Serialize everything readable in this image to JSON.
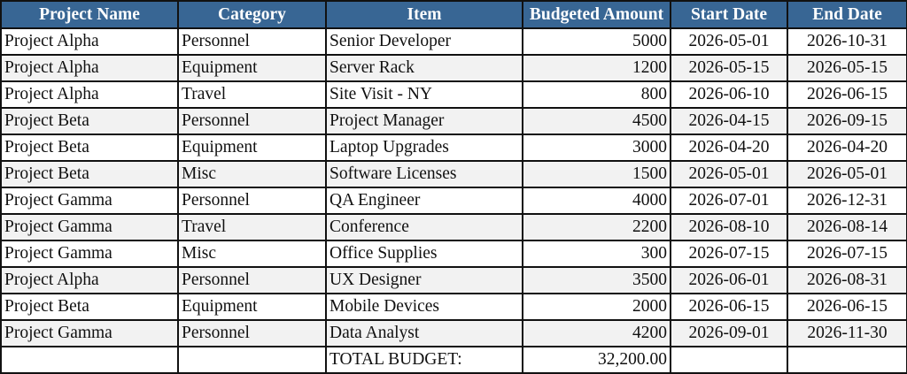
{
  "columns": [
    "Project Name",
    "Category",
    "Item",
    "Budgeted Amount",
    "Start Date",
    "End Date"
  ],
  "rows": [
    [
      "Project Alpha",
      "Personnel",
      "Senior Developer",
      "5000",
      "2026-05-01",
      "2026-10-31"
    ],
    [
      "Project Alpha",
      "Equipment",
      "Server Rack",
      "1200",
      "2026-05-15",
      "2026-05-15"
    ],
    [
      "Project Alpha",
      "Travel",
      "Site Visit - NY",
      "800",
      "2026-06-10",
      "2026-06-15"
    ],
    [
      "Project Beta",
      "Personnel",
      "Project Manager",
      "4500",
      "2026-04-15",
      "2026-09-15"
    ],
    [
      "Project Beta",
      "Equipment",
      "Laptop Upgrades",
      "3000",
      "2026-04-20",
      "2026-04-20"
    ],
    [
      "Project Beta",
      "Misc",
      "Software Licenses",
      "1500",
      "2026-05-01",
      "2026-05-01"
    ],
    [
      "Project Gamma",
      "Personnel",
      "QA Engineer",
      "4000",
      "2026-07-01",
      "2026-12-31"
    ],
    [
      "Project Gamma",
      "Travel",
      "Conference",
      "2200",
      "2026-08-10",
      "2026-08-14"
    ],
    [
      "Project Gamma",
      "Misc",
      "Office Supplies",
      "300",
      "2026-07-15",
      "2026-07-15"
    ],
    [
      "Project Alpha",
      "Personnel",
      "UX Designer",
      "3500",
      "2026-06-01",
      "2026-08-31"
    ],
    [
      "Project Beta",
      "Equipment",
      "Mobile Devices",
      "2000",
      "2026-06-15",
      "2026-06-15"
    ],
    [
      "Project Gamma",
      "Personnel",
      "Data Analyst",
      "4200",
      "2026-09-01",
      "2026-11-30"
    ]
  ],
  "total": {
    "label": "TOTAL BUDGET:",
    "value": "32,200.00"
  },
  "colors": {
    "header_bg": "#386694",
    "header_text": "#ffffff",
    "alt_row": "#f2f2f2"
  }
}
